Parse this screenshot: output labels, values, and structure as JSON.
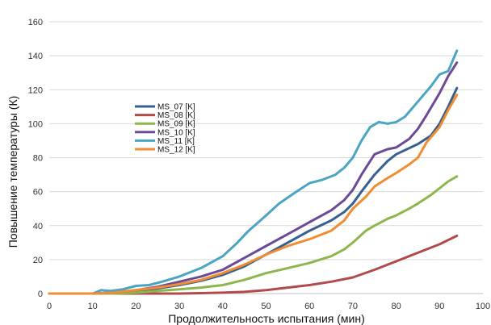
{
  "chart_data": {
    "type": "line",
    "title": "",
    "xlabel": "Продолжительность испытания (мин)",
    "ylabel": "Повышение  температуры (К)",
    "xlim": [
      0,
      100
    ],
    "ylim": [
      0,
      160
    ],
    "x_ticks": [
      "0",
      "10",
      "20",
      "30",
      "40",
      "50",
      "60",
      "70",
      "80",
      "90",
      "100"
    ],
    "y_ticks": [
      "0",
      "20",
      "40",
      "60",
      "80",
      "100",
      "120",
      "140",
      "160"
    ],
    "grid": "horizontal",
    "legend_position": "center-left",
    "series": [
      {
        "name": "MS_07 [K]",
        "color": "#376092",
        "points": [
          [
            0,
            0
          ],
          [
            10,
            0
          ],
          [
            15,
            0.5
          ],
          [
            20,
            1.5
          ],
          [
            25,
            3
          ],
          [
            30,
            5
          ],
          [
            35,
            7.5
          ],
          [
            40,
            11
          ],
          [
            45,
            16
          ],
          [
            50,
            23
          ],
          [
            55,
            30
          ],
          [
            60,
            37
          ],
          [
            65,
            43
          ],
          [
            68,
            48
          ],
          [
            70,
            53
          ],
          [
            72,
            60
          ],
          [
            75,
            70
          ],
          [
            78,
            78
          ],
          [
            80,
            82
          ],
          [
            85,
            88
          ],
          [
            88,
            93
          ],
          [
            90,
            100
          ],
          [
            92,
            110
          ],
          [
            94,
            121
          ]
        ]
      },
      {
        "name": "MS_08 [K]",
        "color": "#B14B4B",
        "points": [
          [
            0,
            0
          ],
          [
            30,
            0
          ],
          [
            40,
            0.5
          ],
          [
            45,
            1
          ],
          [
            50,
            2
          ],
          [
            55,
            3.5
          ],
          [
            60,
            5
          ],
          [
            65,
            7
          ],
          [
            70,
            9.5
          ],
          [
            75,
            14
          ],
          [
            80,
            19
          ],
          [
            85,
            24
          ],
          [
            90,
            29
          ],
          [
            94,
            34
          ]
        ]
      },
      {
        "name": "MS_09 [K]",
        "color": "#8DB64C",
        "points": [
          [
            0,
            0
          ],
          [
            15,
            0
          ],
          [
            20,
            0.5
          ],
          [
            25,
            1.5
          ],
          [
            30,
            2.5
          ],
          [
            35,
            3.5
          ],
          [
            40,
            5
          ],
          [
            45,
            8
          ],
          [
            50,
            12
          ],
          [
            55,
            15
          ],
          [
            60,
            18
          ],
          [
            65,
            22
          ],
          [
            68,
            26
          ],
          [
            70,
            30
          ],
          [
            73,
            37
          ],
          [
            75,
            40
          ],
          [
            78,
            44
          ],
          [
            80,
            46
          ],
          [
            83,
            50
          ],
          [
            85,
            53
          ],
          [
            88,
            58
          ],
          [
            90,
            62
          ],
          [
            92,
            66
          ],
          [
            94,
            69
          ]
        ]
      },
      {
        "name": "MS_10 [K]",
        "color": "#6B4A96",
        "points": [
          [
            0,
            0
          ],
          [
            10,
            0
          ],
          [
            15,
            0.5
          ],
          [
            20,
            2
          ],
          [
            25,
            4
          ],
          [
            30,
            7
          ],
          [
            35,
            10
          ],
          [
            40,
            14
          ],
          [
            45,
            21
          ],
          [
            50,
            28
          ],
          [
            55,
            35
          ],
          [
            60,
            42
          ],
          [
            65,
            49
          ],
          [
            68,
            55
          ],
          [
            70,
            61
          ],
          [
            72,
            70
          ],
          [
            75,
            82
          ],
          [
            78,
            85
          ],
          [
            80,
            86
          ],
          [
            83,
            91
          ],
          [
            85,
            97
          ],
          [
            87,
            105
          ],
          [
            90,
            118
          ],
          [
            92,
            128
          ],
          [
            94,
            136
          ]
        ]
      },
      {
        "name": "MS_11 [K]",
        "color": "#4BA5C2",
        "points": [
          [
            0,
            0
          ],
          [
            10,
            0
          ],
          [
            11,
            1
          ],
          [
            12,
            2
          ],
          [
            14,
            1.5
          ],
          [
            17,
            2.5
          ],
          [
            20,
            4.5
          ],
          [
            23,
            5
          ],
          [
            26,
            7
          ],
          [
            30,
            10
          ],
          [
            35,
            15
          ],
          [
            40,
            22
          ],
          [
            43,
            29
          ],
          [
            46,
            37
          ],
          [
            50,
            46
          ],
          [
            53,
            53
          ],
          [
            57,
            60
          ],
          [
            60,
            65
          ],
          [
            63,
            67
          ],
          [
            66,
            70
          ],
          [
            68,
            74
          ],
          [
            70,
            80
          ],
          [
            72,
            90
          ],
          [
            74,
            98
          ],
          [
            76,
            101
          ],
          [
            78,
            100
          ],
          [
            80,
            101
          ],
          [
            82,
            104
          ],
          [
            84,
            110
          ],
          [
            86,
            116
          ],
          [
            88,
            122
          ],
          [
            90,
            129
          ],
          [
            92,
            131
          ],
          [
            94,
            143
          ]
        ]
      },
      {
        "name": "MS_12 [K]",
        "color": "#F08C32",
        "points": [
          [
            0,
            0
          ],
          [
            10,
            0
          ],
          [
            15,
            0.5
          ],
          [
            20,
            2
          ],
          [
            25,
            3.5
          ],
          [
            30,
            5.5
          ],
          [
            35,
            8
          ],
          [
            40,
            12
          ],
          [
            45,
            17
          ],
          [
            50,
            23
          ],
          [
            55,
            28
          ],
          [
            60,
            32
          ],
          [
            65,
            37
          ],
          [
            68,
            43
          ],
          [
            70,
            50
          ],
          [
            73,
            57
          ],
          [
            75,
            63
          ],
          [
            78,
            68
          ],
          [
            80,
            71
          ],
          [
            83,
            76
          ],
          [
            85,
            80
          ],
          [
            87,
            89
          ],
          [
            90,
            98
          ],
          [
            92,
            108
          ],
          [
            94,
            117
          ]
        ]
      }
    ]
  }
}
